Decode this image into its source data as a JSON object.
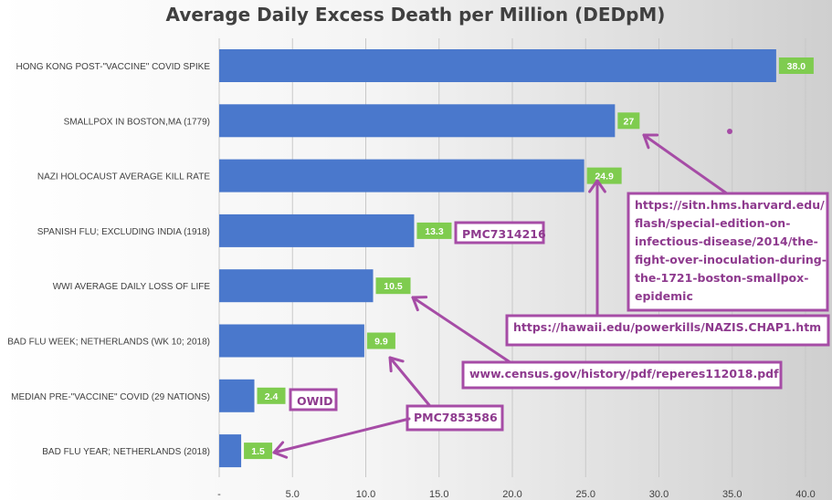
{
  "chart_data": {
    "type": "bar",
    "orientation": "horizontal",
    "title": "Average Daily Excess Death per Million (DEDpM)",
    "categories": [
      "HONG KONG POST-\"VACCINE\" COVID SPIKE",
      "SMALLPOX IN BOSTON,MA (1779)",
      "NAZI HOLOCAUST AVERAGE KILL RATE",
      "SPANISH FLU; EXCLUDING INDIA (1918)",
      "WWI AVERAGE DAILY LOSS OF LIFE",
      "BAD FLU WEEK; NETHERLANDS (WK 10; 2018)",
      "MEDIAN PRE-\"VACCINE\" COVID (29 NATIONS)",
      "BAD FLU YEAR; NETHERLANDS (2018)"
    ],
    "values": [
      38.0,
      27,
      24.9,
      13.3,
      10.5,
      9.9,
      2.4,
      1.5
    ],
    "data_labels": [
      "38.0",
      "27",
      "24.9",
      "13.3",
      "10.5",
      "9.9",
      "2.4",
      "1.5"
    ],
    "xlim": [
      0,
      40
    ],
    "x_ticks": [
      "-",
      "5.0",
      "10.0",
      "15.0",
      "20.0",
      "25.0",
      "30.0",
      "35.0",
      "40.0"
    ],
    "grid": "vertical",
    "xlabel": "",
    "ylabel": "",
    "colors": {
      "bar": "#4a78cc",
      "label_bg": "#7fcc4f",
      "label_text": "#ffffff",
      "annotation": "#a64ca6"
    },
    "annotations": [
      {
        "text": "https://sitn.hms.harvard.edu/\nflash/special-edition-on-\ninfectious-disease/2014/the-\nfight-over-inoculation-during-\nthe-1721-boston-smallpox-\nepidemic",
        "points_to": "SMALLPOX IN BOSTON,MA (1779)"
      },
      {
        "text": "https://hawaii.edu/powerkills/NAZIS.CHAP1.htm",
        "points_to": "NAZI HOLOCAUST AVERAGE KILL RATE"
      },
      {
        "text": "PMC7314216",
        "points_to": "SPANISH FLU; EXCLUDING INDIA (1918)"
      },
      {
        "text": "www.census.gov/history/pdf/reperes112018.pdf",
        "points_to": "WWI AVERAGE DAILY LOSS OF LIFE"
      },
      {
        "text": "OWID",
        "points_to": "MEDIAN PRE-\"VACCINE\" COVID (29 NATIONS)"
      },
      {
        "text": "PMC7853586",
        "points_to": "BAD FLU WEEK; NETHERLANDS (WK 10; 2018) / BAD FLU YEAR; NETHERLANDS (2018)"
      }
    ]
  }
}
